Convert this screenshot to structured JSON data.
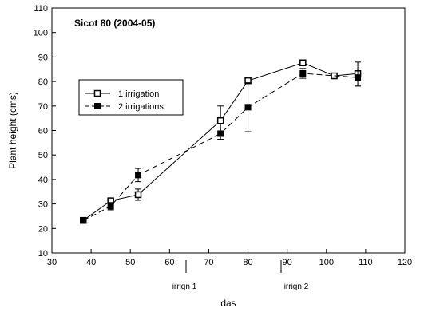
{
  "chart_data": {
    "type": "line",
    "title": "Sicot 80 (2004-05)",
    "xlabel": "das",
    "ylabel": "Plant height (cms)",
    "xlim": [
      30,
      120
    ],
    "ylim": [
      10,
      110
    ],
    "xticks": [
      30,
      40,
      50,
      60,
      70,
      80,
      90,
      100,
      110,
      120
    ],
    "yticks": [
      10,
      20,
      30,
      40,
      50,
      60,
      70,
      80,
      90,
      100,
      110
    ],
    "grid": false,
    "legend_position": "upper-left",
    "series": [
      {
        "name": "1 irrigation",
        "marker": "open-square",
        "line": "solid",
        "color": "#000000",
        "points": [
          {
            "x": 38,
            "y": 23.3,
            "err": 0.8
          },
          {
            "x": 45,
            "y": 31.3,
            "err": 0.8
          },
          {
            "x": 52,
            "y": 33.8,
            "err": 2.3
          },
          {
            "x": 73,
            "y": 64.0,
            "err": 6.0
          },
          {
            "x": 80,
            "y": 80.3,
            "err": 1.0
          },
          {
            "x": 94,
            "y": 87.6,
            "err": 1.2
          },
          {
            "x": 102,
            "y": 82.3,
            "err": 0.6
          },
          {
            "x": 108,
            "y": 83.2,
            "err": 4.7
          }
        ]
      },
      {
        "name": "2 irrigations",
        "marker": "filled-square",
        "line": "dashed",
        "color": "#000000",
        "points": [
          {
            "x": 38,
            "y": 23.2,
            "err": 0.7
          },
          {
            "x": 45,
            "y": 29.1,
            "err": 1.5
          },
          {
            "x": 52,
            "y": 41.8,
            "err": 2.7
          },
          {
            "x": 73,
            "y": 58.7,
            "err": 2.3
          },
          {
            "x": 80,
            "y": 69.5,
            "err": 10.0
          },
          {
            "x": 94,
            "y": 83.3,
            "err": 2.0
          },
          {
            "x": 108,
            "y": 81.6,
            "err": 3.5
          }
        ]
      }
    ],
    "annotations": [
      {
        "text": "irrign 1",
        "x": 63
      },
      {
        "text": "irrign 2",
        "x": 90
      }
    ]
  }
}
